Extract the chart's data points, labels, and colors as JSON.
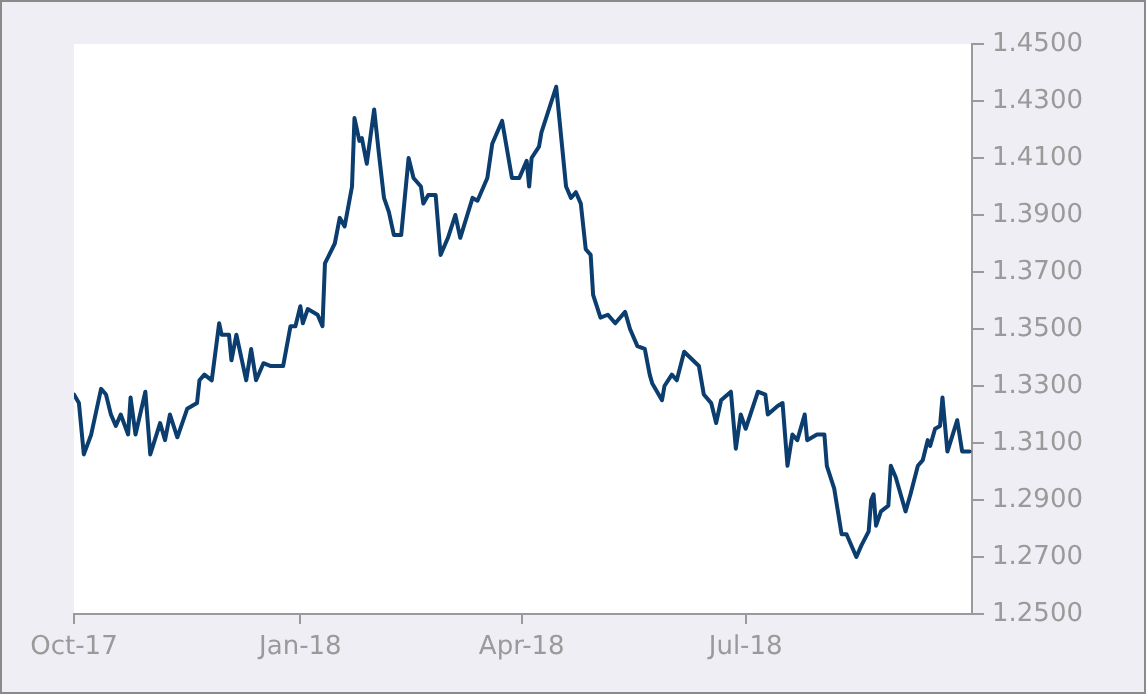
{
  "chart_data": {
    "type": "line",
    "x": [
      "2017-10-01",
      "2017-10-03",
      "2017-10-05",
      "2017-10-08",
      "2017-10-12",
      "2017-10-14",
      "2017-10-16",
      "2017-10-18",
      "2017-10-20",
      "2017-10-23",
      "2017-10-24",
      "2017-10-26",
      "2017-10-30",
      "2017-11-01",
      "2017-11-05",
      "2017-11-07",
      "2017-11-09",
      "2017-11-12",
      "2017-11-16",
      "2017-11-20",
      "2017-11-21",
      "2017-11-23",
      "2017-11-26",
      "2017-11-29",
      "2017-11-30",
      "2017-12-03",
      "2017-12-04",
      "2017-12-06",
      "2017-12-10",
      "2017-12-12",
      "2017-12-14",
      "2017-12-17",
      "2017-12-20",
      "2017-12-25",
      "2017-12-28",
      "2017-12-30",
      "2018-01-01",
      "2018-01-02",
      "2018-01-04",
      "2018-01-08",
      "2018-01-10",
      "2018-01-11",
      "2018-01-15",
      "2018-01-17",
      "2018-01-19",
      "2018-01-22",
      "2018-01-23",
      "2018-01-25",
      "2018-01-26",
      "2018-01-28",
      "2018-01-31",
      "2018-02-02",
      "2018-02-04",
      "2018-02-06",
      "2018-02-08",
      "2018-02-11",
      "2018-02-14",
      "2018-02-16",
      "2018-02-19",
      "2018-02-20",
      "2018-02-22",
      "2018-02-25",
      "2018-02-27",
      "2018-03-02",
      "2018-03-05",
      "2018-03-07",
      "2018-03-12",
      "2018-03-14",
      "2018-03-18",
      "2018-03-20",
      "2018-03-24",
      "2018-03-28",
      "2018-03-31",
      "2018-04-03",
      "2018-04-04",
      "2018-04-05",
      "2018-04-08",
      "2018-04-09",
      "2018-04-15",
      "2018-04-19",
      "2018-04-21",
      "2018-04-23",
      "2018-04-25",
      "2018-04-27",
      "2018-04-29",
      "2018-04-30",
      "2018-05-03",
      "2018-05-06",
      "2018-05-09",
      "2018-05-13",
      "2018-05-15",
      "2018-05-18",
      "2018-05-21",
      "2018-05-23",
      "2018-05-24",
      "2018-05-28",
      "2018-05-29",
      "2018-06-01",
      "2018-06-03",
      "2018-06-06",
      "2018-06-12",
      "2018-06-14",
      "2018-06-17",
      "2018-06-19",
      "2018-06-21",
      "2018-06-25",
      "2018-06-27",
      "2018-06-29",
      "2018-07-01",
      "2018-07-06",
      "2018-07-09",
      "2018-07-10",
      "2018-07-14",
      "2018-07-16",
      "2018-07-18",
      "2018-07-20",
      "2018-07-22",
      "2018-07-25",
      "2018-07-26",
      "2018-07-30",
      "2018-08-02",
      "2018-08-03",
      "2018-08-06",
      "2018-08-09",
      "2018-08-11",
      "2018-08-15",
      "2018-08-17",
      "2018-08-20",
      "2018-08-21",
      "2018-08-22",
      "2018-08-23",
      "2018-08-25",
      "2018-08-28",
      "2018-08-29",
      "2018-08-31",
      "2018-09-04",
      "2018-09-06",
      "2018-09-09",
      "2018-09-11",
      "2018-09-13",
      "2018-09-14",
      "2018-09-16",
      "2018-09-18",
      "2018-09-19",
      "2018-09-21",
      "2018-09-25",
      "2018-09-27",
      "2018-09-30"
    ],
    "series": [
      {
        "color": "#0b3d6f",
        "values": [
          1.327,
          1.324,
          1.306,
          1.313,
          1.329,
          1.327,
          1.32,
          1.316,
          1.32,
          1.313,
          1.326,
          1.313,
          1.328,
          1.306,
          1.317,
          1.311,
          1.32,
          1.312,
          1.322,
          1.324,
          1.332,
          1.334,
          1.332,
          1.352,
          1.348,
          1.348,
          1.339,
          1.348,
          1.332,
          1.343,
          1.332,
          1.338,
          1.337,
          1.337,
          1.351,
          1.351,
          1.358,
          1.352,
          1.357,
          1.355,
          1.351,
          1.373,
          1.38,
          1.389,
          1.386,
          1.4,
          1.424,
          1.416,
          1.417,
          1.408,
          1.427,
          1.411,
          1.396,
          1.391,
          1.383,
          1.383,
          1.41,
          1.403,
          1.4,
          1.394,
          1.397,
          1.397,
          1.376,
          1.382,
          1.39,
          1.382,
          1.396,
          1.395,
          1.403,
          1.415,
          1.423,
          1.403,
          1.403,
          1.409,
          1.4,
          1.41,
          1.414,
          1.419,
          1.435,
          1.4,
          1.396,
          1.398,
          1.394,
          1.378,
          1.376,
          1.362,
          1.354,
          1.355,
          1.352,
          1.356,
          1.35,
          1.344,
          1.343,
          1.334,
          1.331,
          1.325,
          1.33,
          1.334,
          1.332,
          1.342,
          1.337,
          1.327,
          1.324,
          1.317,
          1.325,
          1.328,
          1.308,
          1.32,
          1.315,
          1.328,
          1.327,
          1.32,
          1.323,
          1.324,
          1.302,
          1.313,
          1.311,
          1.32,
          1.311,
          1.313,
          1.313,
          1.302,
          1.294,
          1.278,
          1.278,
          1.27,
          1.274,
          1.279,
          1.29,
          1.292,
          1.281,
          1.286,
          1.288,
          1.302,
          1.298,
          1.286,
          1.292,
          1.302,
          1.304,
          1.311,
          1.309,
          1.315,
          1.316,
          1.326,
          1.307,
          1.318,
          1.307,
          1.307
        ]
      }
    ],
    "xlim": [
      "2017-10-01",
      "2018-10-01"
    ],
    "xticks": [
      {
        "value": "2017-10-01",
        "label": "Oct-17"
      },
      {
        "value": "2018-01-01",
        "label": "Jan-18"
      },
      {
        "value": "2018-04-01",
        "label": "Apr-18"
      },
      {
        "value": "2018-07-01",
        "label": "Jul-18"
      }
    ],
    "ylim": [
      1.25,
      1.45
    ],
    "yticks": [
      {
        "value": 1.25,
        "label": "1.2500"
      },
      {
        "value": 1.27,
        "label": "1.2700"
      },
      {
        "value": 1.29,
        "label": "1.2900"
      },
      {
        "value": 1.31,
        "label": "1.3100"
      },
      {
        "value": 1.33,
        "label": "1.3300"
      },
      {
        "value": 1.35,
        "label": "1.3500"
      },
      {
        "value": 1.37,
        "label": "1.3700"
      },
      {
        "value": 1.39,
        "label": "1.3900"
      },
      {
        "value": 1.41,
        "label": "1.4100"
      },
      {
        "value": 1.43,
        "label": "1.4300"
      },
      {
        "value": 1.45,
        "label": "1.4500"
      }
    ],
    "grid": false,
    "legend": false,
    "marker": "none",
    "line_style": "solid"
  }
}
